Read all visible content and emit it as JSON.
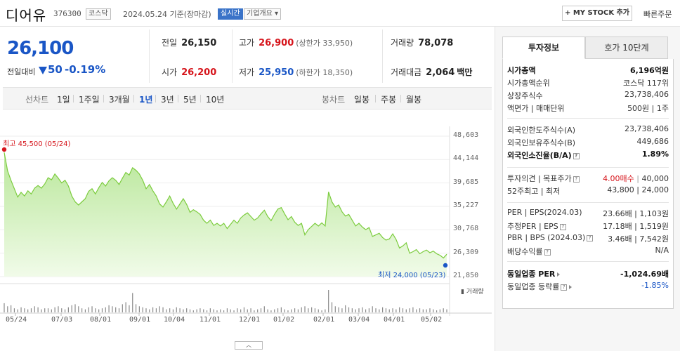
{
  "header": {
    "name": "디어유",
    "code": "376300",
    "market": "코스닥",
    "date_text": "2024.05.24 기준(장마감)",
    "realtime_badge": "실시간",
    "corp_badge": "기업개요 ▾",
    "mystock_button": "+ MY STOCK 추가",
    "quick_order": "빠른주문"
  },
  "price": {
    "current": "26,100",
    "change_label": "전일대비",
    "change_value": "50",
    "change_pct": "-0.19%"
  },
  "quote": {
    "prev_close_label": "전일",
    "prev_close": "26,150",
    "high_label": "고가",
    "high": "26,900",
    "upper_limit": "(상한가 33,950)",
    "volume_label": "거래량",
    "volume": "78,078",
    "open_label": "시가",
    "open": "26,200",
    "low_label": "저가",
    "low": "25,950",
    "lower_limit": "(하한가 18,350)",
    "amount_label": "거래대금",
    "amount": "2,064",
    "amount_unit": "백만"
  },
  "tabs": {
    "line_chart": "선차트",
    "periods": [
      "1일",
      "1주일",
      "3개월",
      "1년",
      "3년",
      "5년",
      "10년"
    ],
    "active_period": "1년",
    "candle_chart": "봉차트",
    "candle_periods": [
      "일봉",
      "주봉",
      "월봉"
    ]
  },
  "chart_data": {
    "type": "area",
    "y_ticks": [
      "48,603",
      "44,144",
      "39,685",
      "35,227",
      "30,768",
      "26,309",
      "21,850"
    ],
    "ylim": [
      21850,
      48603
    ],
    "x_ticks": [
      "05/24",
      "07/03",
      "08/01",
      "09/01",
      "10/04",
      "11/01",
      "12/01",
      "01/02",
      "02/01",
      "03/04",
      "04/01",
      "05/02"
    ],
    "high_annotation": "최고 45,500 (05/24)",
    "low_annotation": "최저 24,000 (05/23)",
    "volume_label": "거래량",
    "series": [
      {
        "values": [
          45500,
          42000,
          40200,
          38600,
          37000,
          37900,
          37200,
          38200,
          37600,
          38700,
          39200,
          38700,
          39500,
          40700,
          40300,
          41400,
          40600,
          39700,
          40200,
          39100,
          37200,
          36100,
          35500,
          36100,
          36700,
          38100,
          38600,
          37600,
          38800,
          39800,
          39100,
          40100,
          40700,
          40200,
          39400,
          40600,
          41700,
          41200,
          42600,
          42100,
          41400,
          40200,
          38600,
          39400,
          38200,
          37200,
          35700,
          35100,
          36100,
          37200,
          35800,
          34700,
          35700,
          36700,
          35600,
          34100,
          34600,
          34200,
          33700,
          32600,
          32000,
          32600,
          31600,
          32000,
          31500,
          32000,
          31000,
          31800,
          32600,
          32000,
          33000,
          33600,
          34000,
          33300,
          32600,
          33000,
          33800,
          34500,
          33300,
          32500,
          33700,
          34700,
          35000,
          33800,
          32700,
          33300,
          32200,
          31600,
          32000,
          29800,
          30800,
          31400,
          32000,
          31500,
          32100,
          31500,
          38000,
          36100,
          35100,
          35500,
          34200,
          33400,
          33700,
          32600,
          31500,
          32000,
          31300,
          30800,
          31200,
          29500,
          29800,
          30100,
          29300,
          28800,
          29000,
          30000,
          28900,
          27300,
          27700,
          28300,
          26300,
          26600,
          27000,
          26200,
          26600,
          26900,
          26400,
          26700,
          26200,
          25900,
          25400,
          26100
        ]
      }
    ],
    "volume": [
      9,
      6,
      7,
      4,
      3,
      5,
      4,
      3,
      4,
      6,
      5,
      3,
      4,
      4,
      3,
      5,
      6,
      4,
      3,
      5,
      7,
      8,
      6,
      4,
      3,
      5,
      6,
      4,
      3,
      4,
      5,
      7,
      6,
      5,
      4,
      8,
      10,
      7,
      19,
      8,
      6,
      5,
      4,
      3,
      5,
      4,
      6,
      5,
      3,
      4,
      3,
      5,
      4,
      3,
      4,
      3,
      2,
      3,
      4,
      3,
      2,
      4,
      3,
      2,
      3,
      2,
      4,
      3,
      2,
      4,
      3,
      5,
      3,
      4,
      2,
      3,
      4,
      6,
      3,
      2,
      3,
      4,
      5,
      3,
      2,
      3,
      4,
      3,
      5,
      6,
      4,
      5,
      4,
      3,
      2,
      3,
      22,
      10,
      6,
      5,
      4,
      7,
      5,
      4,
      3,
      4,
      5,
      3,
      4,
      6,
      4,
      3,
      5,
      4,
      3,
      4,
      3,
      5,
      4,
      3,
      4,
      5,
      3,
      4,
      3,
      3,
      4,
      3,
      2,
      3,
      4,
      3
    ]
  },
  "collapse_button": "︿",
  "right_panel": {
    "tab_invest": "투자정보",
    "tab_orderbook": "호가 10단계",
    "rows": [
      {
        "label": "시가총액",
        "value": "6,196억원",
        "bold": true
      },
      {
        "label": "시가총액순위",
        "value": "코스닥 117위"
      },
      {
        "label": "상장주식수",
        "value": "23,738,406"
      },
      {
        "label": "액면가 | 매매단위",
        "value": "500원 | 1주"
      },
      {
        "label": "외국인한도주식수(A)",
        "value": "23,738,406"
      },
      {
        "label": "외국인보유주식수(B)",
        "value": "449,686"
      },
      {
        "label": "외국인소진율(B/A)",
        "value": "1.89%",
        "bold": true
      },
      {
        "label": "투자의견 | 목표주가",
        "value_up": "4.00매수",
        "value": "40,000"
      },
      {
        "label": "52주최고 | 최저",
        "value": "43,800 | 24,000"
      },
      {
        "label": "PER | EPS(2024.03)",
        "value": "23.66배 | 1,103원"
      },
      {
        "label": "추정PER | EPS",
        "value": "17.18배 | 1,519원"
      },
      {
        "label": "PBR | BPS (2024.03)",
        "value": "3.46배 | 7,542원"
      },
      {
        "label": "배당수익률",
        "value": "N/A"
      },
      {
        "label": "동일업종 PER",
        "value": "-1,024.69배",
        "bold": true
      },
      {
        "label": "동일업종 등락률",
        "value": "-1.85%"
      }
    ]
  },
  "colors": {
    "up": "#d6141b",
    "down": "#1a56c6",
    "area_fill": "#cdeeb0",
    "area_line": "#7ccc3e"
  }
}
